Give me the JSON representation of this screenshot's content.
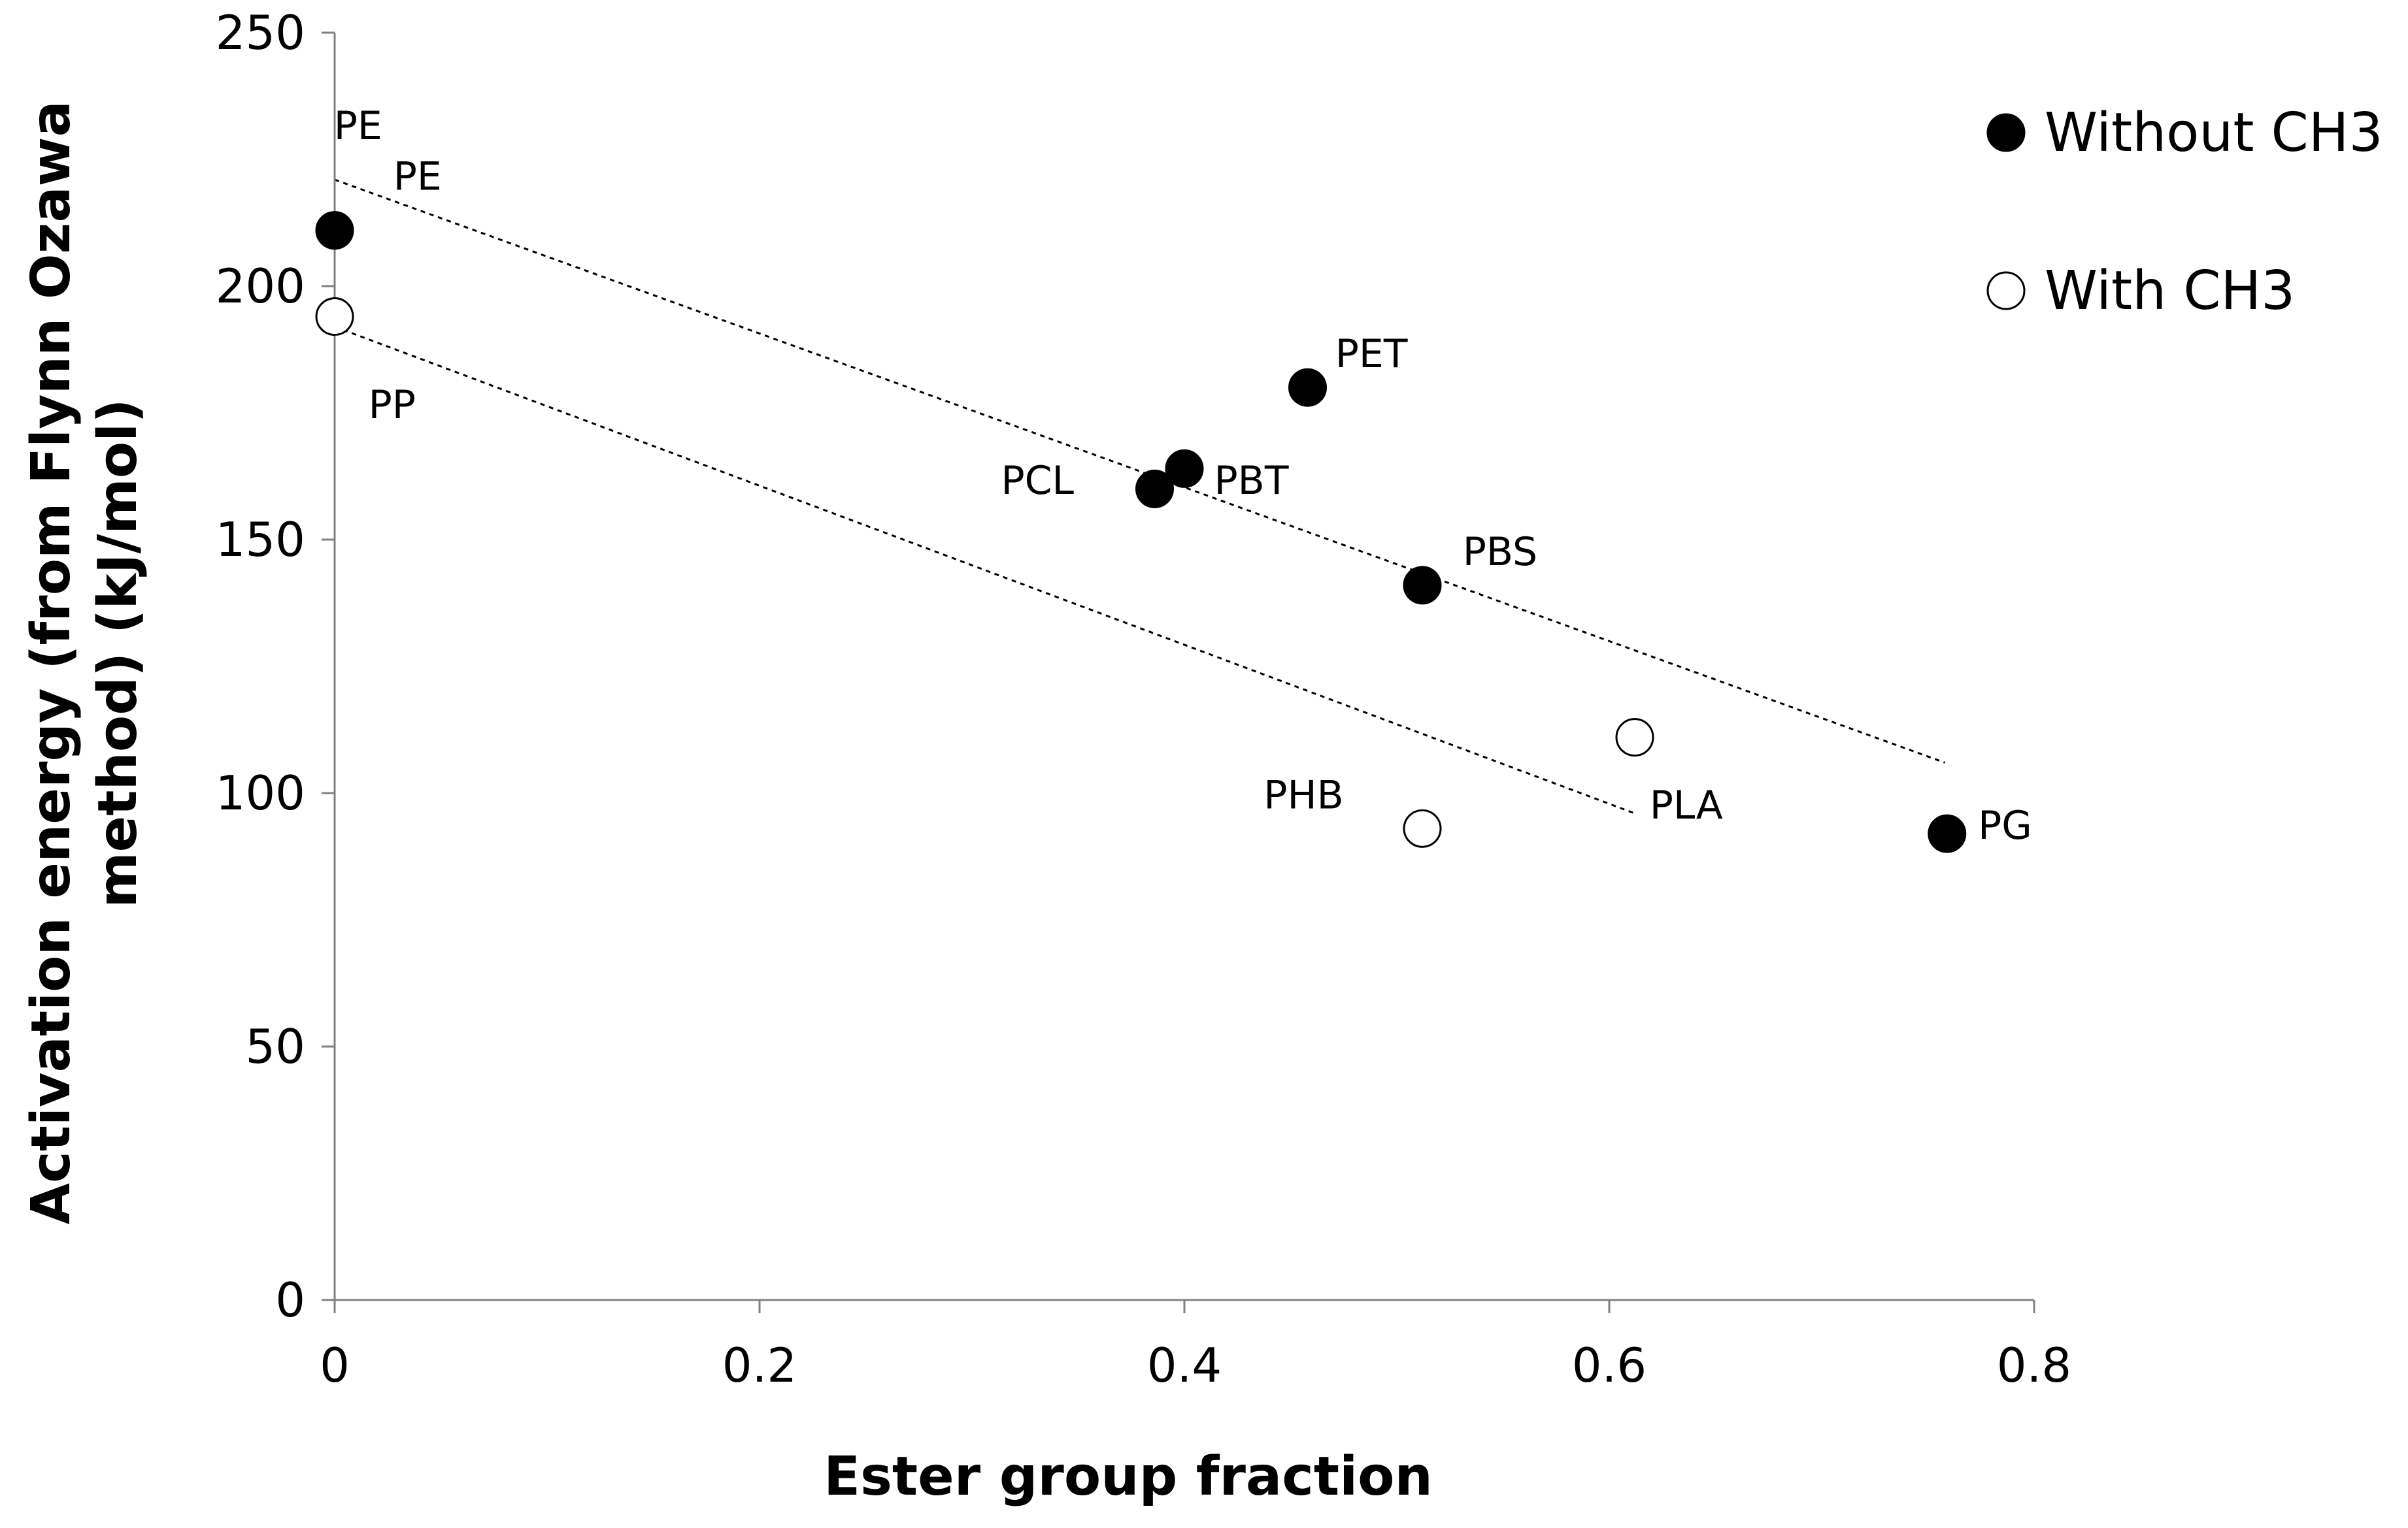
{
  "chart_data": {
    "type": "scatter",
    "title": "",
    "xlabel": "Ester group fraction",
    "ylabel_lines": [
      "Activation energy (from Flynn Ozawa",
      "method) (kJ/mol)"
    ],
    "xlim": [
      0,
      0.8
    ],
    "ylim": [
      0,
      250
    ],
    "x_ticks": [
      0,
      0.2,
      0.4,
      0.6,
      0.8
    ],
    "x_tick_labels": [
      "0",
      "0.2",
      "0.4",
      "0.6",
      "0.8"
    ],
    "y_ticks": [
      0,
      50,
      100,
      150,
      200,
      250
    ],
    "y_tick_labels": [
      "0",
      "50",
      "100",
      "150",
      "200",
      "250"
    ],
    "grid": false,
    "legend_position": "top-right",
    "series": [
      {
        "name": "Without CH3",
        "marker": "filled-circle",
        "color": "#000000",
        "points": [
          {
            "label": "PE",
            "x": 0.0,
            "y": 211
          },
          {
            "label": "PCL",
            "x": 0.386,
            "y": 160
          },
          {
            "label": "PBT",
            "x": 0.4,
            "y": 164
          },
          {
            "label": "PET",
            "x": 0.458,
            "y": 180
          },
          {
            "label": "PBS",
            "x": 0.512,
            "y": 141
          },
          {
            "label": "PG",
            "x": 0.759,
            "y": 92
          }
        ]
      },
      {
        "name": "With CH3",
        "marker": "open-circle",
        "color": "#000000",
        "points": [
          {
            "label": "PP",
            "x": 0.0,
            "y": 194
          },
          {
            "label": "PHB",
            "x": 0.512,
            "y": 93
          },
          {
            "label": "PLA",
            "x": 0.612,
            "y": 111
          }
        ]
      }
    ],
    "trendlines": [
      {
        "series": "Without CH3",
        "style": "dotted",
        "x": [
          0.0,
          0.758
        ],
        "y": [
          221,
          106
        ]
      },
      {
        "series": "With CH3",
        "style": "dotted",
        "x": [
          0.0,
          0.612
        ],
        "y": [
          192,
          96
        ]
      }
    ],
    "annotations": [
      {
        "text": "PE",
        "x": 0.011,
        "y": 229,
        "anchor": "middle"
      },
      {
        "text": "PE",
        "x": 0.039,
        "y": 219,
        "anchor": "middle"
      },
      {
        "text": "PP",
        "x": 0.027,
        "y": 174,
        "anchor": "middle"
      },
      {
        "text": "PCL",
        "x": 0.348,
        "y": 159,
        "anchor": "end"
      },
      {
        "text": "PBT",
        "x": 0.414,
        "y": 159,
        "anchor": "start"
      },
      {
        "text": "PET",
        "x": 0.471,
        "y": 184,
        "anchor": "start"
      },
      {
        "text": "PBS",
        "x": 0.531,
        "y": 145,
        "anchor": "start"
      },
      {
        "text": "PHB",
        "x": 0.475,
        "y": 97,
        "anchor": "end"
      },
      {
        "text": "PLA",
        "x": 0.619,
        "y": 95,
        "anchor": "start"
      },
      {
        "text": "PG",
        "x": 0.799,
        "y": 91,
        "anchor": "end"
      }
    ]
  }
}
